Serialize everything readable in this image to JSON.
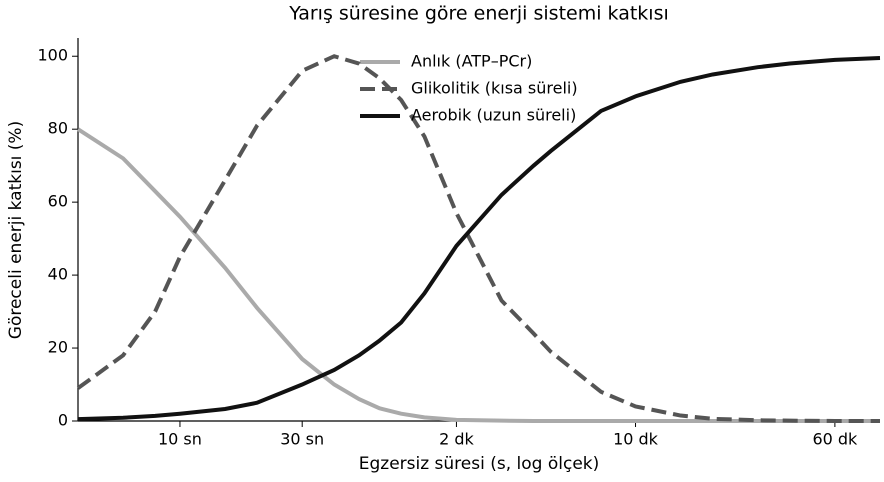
{
  "chart_data": {
    "type": "line",
    "title": "Yarış süresine göre enerji sistemi katkısı",
    "xlabel": "Egzersiz süresi (s, log ölçek)",
    "ylabel": "Göreceli enerji katkısı (%)",
    "xscale": "log",
    "x": [
      4,
      6,
      8,
      10,
      15,
      20,
      30,
      40,
      50,
      60,
      73,
      90,
      120,
      180,
      240,
      280,
      440,
      600,
      900,
      1200,
      1800,
      2400,
      3600,
      5400
    ],
    "series": [
      {
        "name": "Anlık (ATP–PCr)",
        "color": "#aaaaaa",
        "dash": "solid",
        "values": [
          80,
          72,
          63,
          56,
          42,
          31,
          17,
          10,
          6,
          3.5,
          2,
          1,
          0.3,
          0.1,
          0,
          0,
          0,
          0,
          0,
          0,
          0,
          0,
          0,
          0
        ]
      },
      {
        "name": "Glikolitik (kısa süreli)",
        "color": "#555555",
        "dash": "dashed",
        "values": [
          9,
          18,
          30,
          45,
          66,
          81,
          96,
          100,
          98,
          94,
          88,
          78,
          57,
          33,
          24,
          19,
          8,
          4,
          1.5,
          0.6,
          0.2,
          0.1,
          0,
          0
        ]
      },
      {
        "name": "Aerobik (uzun süreli)",
        "color": "#111111",
        "dash": "solid",
        "values": [
          0.5,
          0.9,
          1.4,
          2,
          3.3,
          5,
          10,
          14,
          18,
          22,
          27,
          35,
          48,
          62,
          70,
          74,
          85,
          89,
          93,
          95,
          97,
          98,
          99,
          99.5
        ]
      }
    ],
    "xlim": [
      4,
      5400
    ],
    "xticks": [
      {
        "value": 10,
        "label": "10 sn"
      },
      {
        "value": 30,
        "label": "30 sn"
      },
      {
        "value": 120,
        "label": "2 dk"
      },
      {
        "value": 600,
        "label": "10 dk"
      },
      {
        "value": 3600,
        "label": "60 dk"
      }
    ],
    "ylim": [
      0,
      105
    ],
    "yticks": [
      0,
      20,
      40,
      60,
      80,
      100
    ],
    "grid": false,
    "legend": "upper center"
  }
}
